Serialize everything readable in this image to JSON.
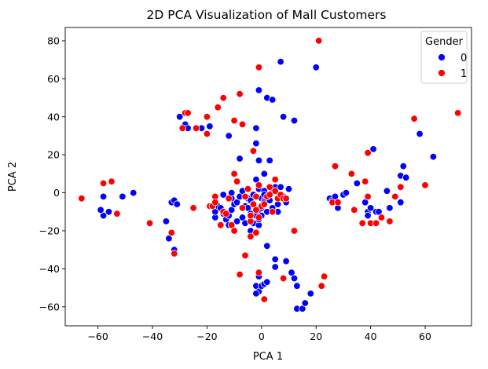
{
  "chart_data": {
    "type": "scatter",
    "title": "2D PCA Visualization of Mall Customers",
    "xlabel": "PCA 1",
    "ylabel": "PCA 2",
    "xlim": [
      -72,
      77
    ],
    "ylim": [
      -70,
      87
    ],
    "xticks": [
      -60,
      -40,
      -20,
      0,
      20,
      40,
      60
    ],
    "yticks": [
      -60,
      -40,
      -20,
      0,
      20,
      40,
      60,
      80
    ],
    "grid": false,
    "legend": {
      "title": "Gender",
      "placement": "top-right"
    },
    "series": [
      {
        "name": "0",
        "color": "#0000ff",
        "points": [
          [
            -58,
            -12
          ],
          [
            -59,
            -9
          ],
          [
            -58,
            -2
          ],
          [
            -56,
            -10
          ],
          [
            -51,
            -2
          ],
          [
            -47,
            0
          ],
          [
            -35,
            -15
          ],
          [
            -34,
            -24
          ],
          [
            -33,
            -5
          ],
          [
            -32,
            -4
          ],
          [
            -32,
            -30
          ],
          [
            -31,
            -6
          ],
          [
            -30,
            40
          ],
          [
            -28,
            36
          ],
          [
            -27,
            34
          ],
          [
            -22,
            34
          ],
          [
            -19,
            35
          ],
          [
            -17,
            -13
          ],
          [
            -17,
            -10
          ],
          [
            -16,
            45
          ],
          [
            -16,
            -7
          ],
          [
            -15,
            -8
          ],
          [
            -14,
            -1
          ],
          [
            -14,
            -11
          ],
          [
            -13,
            -14
          ],
          [
            -12,
            30
          ],
          [
            -12,
            -12
          ],
          [
            -12,
            -17
          ],
          [
            -11,
            -3
          ],
          [
            -11,
            0
          ],
          [
            -11,
            -9
          ],
          [
            -10,
            -6
          ],
          [
            -9,
            -15
          ],
          [
            -9,
            -5
          ],
          [
            -8,
            18
          ],
          [
            -8,
            -2
          ],
          [
            -7,
            1
          ],
          [
            -7,
            -13
          ],
          [
            -6,
            -7
          ],
          [
            -6,
            -16
          ],
          [
            -5,
            -3
          ],
          [
            -5,
            -8
          ],
          [
            -4,
            -4
          ],
          [
            -4,
            -20
          ],
          [
            -3,
            -1
          ],
          [
            -3,
            -16
          ],
          [
            -2,
            7
          ],
          [
            -2,
            26
          ],
          [
            -1,
            -9
          ],
          [
            -1,
            17
          ],
          [
            -1,
            2
          ],
          [
            0,
            -8
          ],
          [
            0,
            -3
          ],
          [
            1,
            -4
          ],
          [
            1,
            1
          ],
          [
            1,
            10
          ],
          [
            0,
            -12
          ],
          [
            -1,
            -17
          ],
          [
            -2,
            34
          ],
          [
            -1,
            54
          ],
          [
            1,
            -5
          ],
          [
            1,
            -1
          ],
          [
            2,
            50
          ],
          [
            2,
            -10
          ],
          [
            2,
            -28
          ],
          [
            3,
            17
          ],
          [
            3,
            -4
          ],
          [
            4,
            49
          ],
          [
            4,
            1
          ],
          [
            4,
            -8
          ],
          [
            5,
            3
          ],
          [
            5,
            -39
          ],
          [
            5,
            -35
          ],
          [
            6,
            -10
          ],
          [
            6,
            -6
          ],
          [
            7,
            69
          ],
          [
            7,
            3
          ],
          [
            8,
            40
          ],
          [
            8,
            -2
          ],
          [
            9,
            -5
          ],
          [
            10,
            2
          ],
          [
            11,
            -42
          ],
          [
            12,
            38
          ],
          [
            9,
            -36
          ],
          [
            -1,
            -44
          ],
          [
            -2,
            -49
          ],
          [
            -1,
            -52
          ],
          [
            -2,
            -53
          ],
          [
            0,
            -49
          ],
          [
            1,
            -48
          ],
          [
            2,
            -47
          ],
          [
            12,
            -45
          ],
          [
            13,
            -49
          ],
          [
            13,
            -61
          ],
          [
            15,
            -61
          ],
          [
            16,
            -58
          ],
          [
            18,
            -53
          ],
          [
            20,
            66
          ],
          [
            25,
            -3
          ],
          [
            26,
            -4
          ],
          [
            27,
            -2
          ],
          [
            28,
            -8
          ],
          [
            30,
            -1
          ],
          [
            31,
            0
          ],
          [
            35,
            5
          ],
          [
            38,
            -5
          ],
          [
            39,
            -10
          ],
          [
            39,
            -12
          ],
          [
            40,
            -8
          ],
          [
            41,
            23
          ],
          [
            42,
            -10
          ],
          [
            43,
            -10
          ],
          [
            46,
            1
          ],
          [
            47,
            -8
          ],
          [
            51,
            9
          ],
          [
            51,
            -5
          ],
          [
            52,
            14
          ],
          [
            53,
            8
          ],
          [
            58,
            31
          ],
          [
            63,
            19
          ],
          [
            -2,
            -12
          ],
          [
            -4,
            -11
          ],
          [
            -1,
            -14
          ],
          [
            -3,
            -6
          ]
        ]
      },
      {
        "name": "1",
        "color": "#ff0000",
        "points": [
          [
            -66,
            -3
          ],
          [
            -58,
            5
          ],
          [
            -55,
            6
          ],
          [
            -53,
            -11
          ],
          [
            -41,
            -16
          ],
          [
            -33,
            -21
          ],
          [
            -32,
            -32
          ],
          [
            -29,
            34
          ],
          [
            -28,
            42
          ],
          [
            -27,
            42
          ],
          [
            -25,
            -8
          ],
          [
            -24,
            34
          ],
          [
            -20,
            31
          ],
          [
            -20,
            40
          ],
          [
            -19,
            -7
          ],
          [
            -18,
            -7
          ],
          [
            -17,
            -2
          ],
          [
            -17,
            -5
          ],
          [
            -16,
            45
          ],
          [
            -15,
            -17
          ],
          [
            -14,
            50
          ],
          [
            -14,
            -10
          ],
          [
            -12,
            -3
          ],
          [
            -11,
            -17
          ],
          [
            -10,
            38
          ],
          [
            -10,
            10
          ],
          [
            -10,
            -20
          ],
          [
            -9,
            6
          ],
          [
            -9,
            6
          ],
          [
            -8,
            52
          ],
          [
            -8,
            -43
          ],
          [
            -7,
            36
          ],
          [
            -6,
            -2
          ],
          [
            -6,
            -33
          ],
          [
            -5,
            2
          ],
          [
            -4,
            -15
          ],
          [
            -4,
            -12
          ],
          [
            -3,
            -6
          ],
          [
            -3,
            22
          ],
          [
            -2,
            -2
          ],
          [
            -2,
            -21
          ],
          [
            -1,
            4
          ],
          [
            -1,
            -13
          ],
          [
            -1,
            66
          ],
          [
            -1,
            -42
          ],
          [
            0,
            -7
          ],
          [
            1,
            -6
          ],
          [
            1,
            -56
          ],
          [
            2,
            -2
          ],
          [
            3,
            3
          ],
          [
            3,
            -1
          ],
          [
            4,
            -10
          ],
          [
            5,
            1
          ],
          [
            5,
            7
          ],
          [
            6,
            -3
          ],
          [
            7,
            -1
          ],
          [
            8,
            -45
          ],
          [
            8,
            -3
          ],
          [
            9,
            -3
          ],
          [
            12,
            -20
          ],
          [
            21,
            80
          ],
          [
            22,
            -49
          ],
          [
            23,
            -44
          ],
          [
            26,
            -5
          ],
          [
            27,
            14
          ],
          [
            28,
            -5
          ],
          [
            33,
            10
          ],
          [
            34,
            -9
          ],
          [
            37,
            -16
          ],
          [
            38,
            6
          ],
          [
            39,
            -2
          ],
          [
            39,
            21
          ],
          [
            40,
            -16
          ],
          [
            42,
            -16
          ],
          [
            44,
            -13
          ],
          [
            47,
            -15
          ],
          [
            49,
            -2
          ],
          [
            51,
            3
          ],
          [
            56,
            39
          ],
          [
            60,
            4
          ],
          [
            72,
            42
          ],
          [
            -2,
            -9
          ],
          [
            -4,
            -23
          ],
          [
            -7,
            -8
          ],
          [
            -13,
            -11
          ]
        ]
      }
    ]
  }
}
